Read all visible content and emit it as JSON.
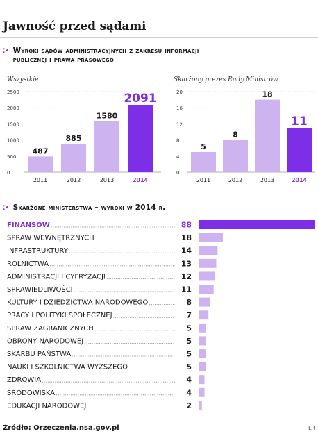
{
  "title": "Jawność przed sądami",
  "section1": {
    "heading_line1": "Wyroki sądów administracyjnych z zakresu informacji",
    "heading_line2": "publicznej i prawa prasowego"
  },
  "section2": {
    "heading": "Skarżone ministerstwa – wyroki w 2014 r."
  },
  "source": "Źródło: Orzeczenia.nsa.gov.pl",
  "credit": "ŁR",
  "colors": {
    "bar_light": "#cdb4f0",
    "bar_dark": "#7d2ee6",
    "label_accent": "#7d2ee6"
  },
  "chart_data": [
    {
      "type": "bar",
      "title": "Wszystkie",
      "categories": [
        "2011",
        "2012",
        "2013",
        "2014"
      ],
      "values": [
        487,
        885,
        1580,
        2091
      ],
      "ylim": [
        0,
        2500
      ],
      "yticks": [
        0,
        500,
        1000,
        1500,
        2000,
        2500
      ],
      "highlight_index": 3
    },
    {
      "type": "bar",
      "title": "Skarżony prezes Rady Ministrów",
      "categories": [
        "2011",
        "2012",
        "2013",
        "2014"
      ],
      "values": [
        5,
        8,
        18,
        11
      ],
      "ylim": [
        0,
        20
      ],
      "yticks": [
        0,
        4,
        8,
        12,
        16,
        20
      ],
      "highlight_index": 3
    },
    {
      "type": "bar",
      "orientation": "horizontal",
      "title": "Skarżone ministerstwa – wyroki w 2014 r.",
      "categories": [
        "FINANSÓW",
        "SPRAW WEWNĘTRZNYCH",
        "INFRASTRUKTURY",
        "ROLNICTWA",
        "ADMINISTRACJI I CYFRYZACJI",
        "SPRAWIEDLIWOŚCI",
        "KULTURY I DZIEDZICTWA NARODOWEGO",
        "PRACY I POLITYKI SPOŁECZNEJ",
        "SPRAW ZAGRANICZNYCH",
        "OBRONY NARODOWEJ",
        "SKARBU PAŃSTWA",
        "NAUKI I SZKOLNICTWA WYŻSZEGO",
        "ZDROWIA",
        "ŚRODOWISKA",
        "EDUKACJI NARODOWEJ"
      ],
      "values": [
        88,
        18,
        14,
        13,
        12,
        11,
        8,
        7,
        5,
        5,
        5,
        5,
        4,
        4,
        2
      ],
      "highlight_index": 0
    }
  ]
}
